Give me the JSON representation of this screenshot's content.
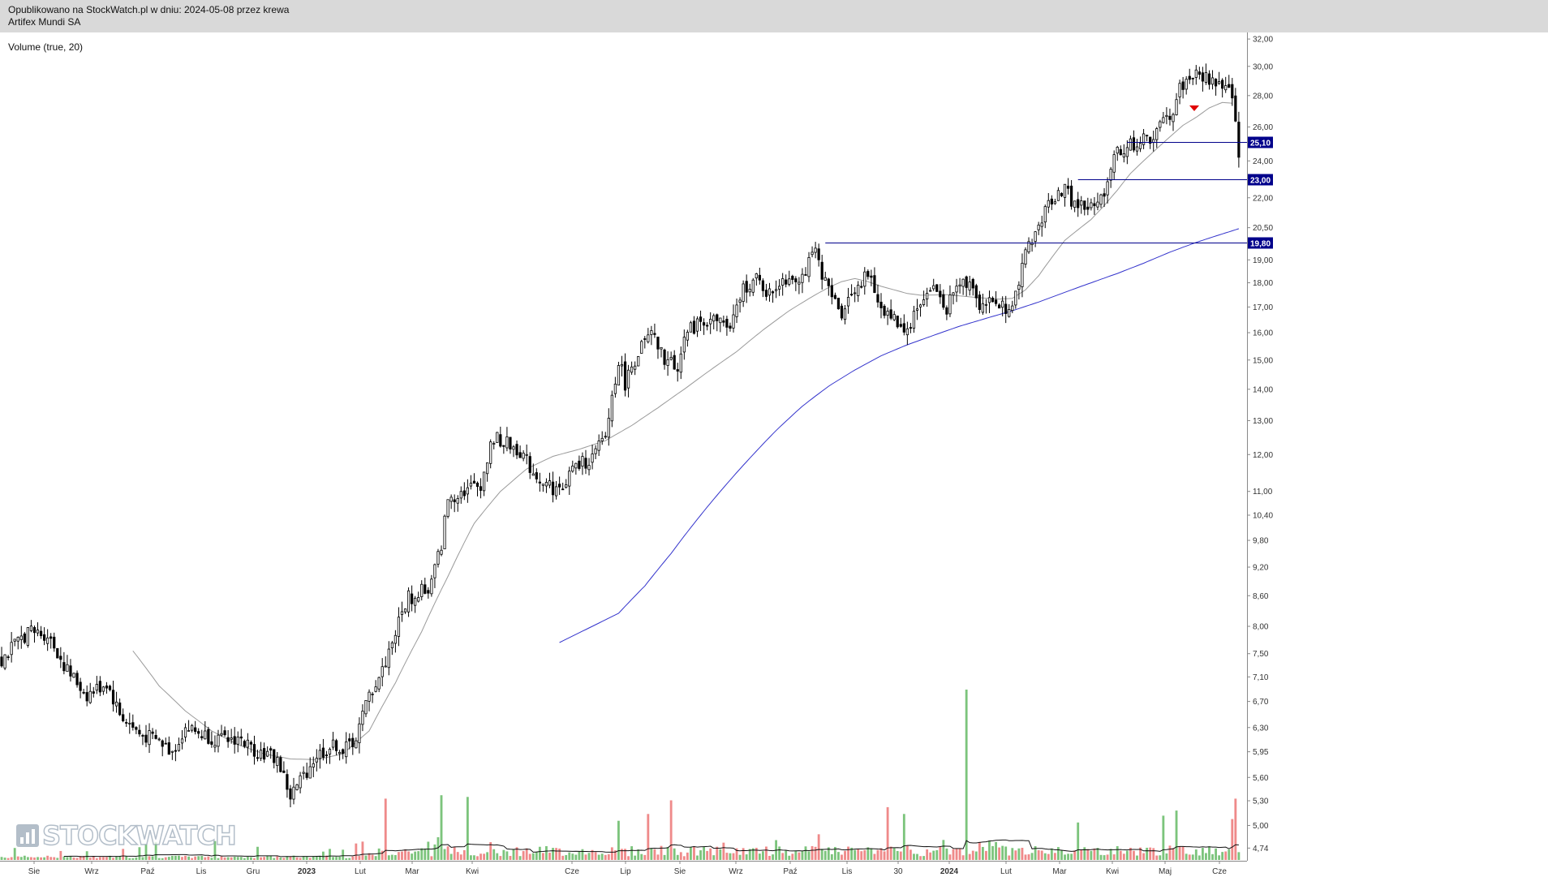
{
  "header": {
    "published": "Opublikowano na StockWatch.pl w dniu: 2024-05-08 przez krewa",
    "instrument": "Artifex Mundi SA"
  },
  "indicator_label": "Volume (true, 20)",
  "logo_text": "STOCKWATCH",
  "colors": {
    "candle": "#000000",
    "sma_short": "#9a9a9a",
    "sma_long": "#3333cc",
    "level_line": "#00008b",
    "volume_up": "#7cc47c",
    "volume_down": "#ef8a8a",
    "marker": "#ff9a9a",
    "arrow": "#e00000"
  },
  "chart_data": {
    "type": "candlestick",
    "price_axis": {
      "scale": "log",
      "ticks": [
        "32,00",
        "30,00",
        "28,00",
        "26,00",
        "24,00",
        "22,00",
        "20,50",
        "19,00",
        "18,00",
        "17,00",
        "16,00",
        "15,00",
        "14,00",
        "13,00",
        "12,00",
        "11,00",
        "10,40",
        "9,80",
        "9,20",
        "8,60",
        "8,00",
        "7,50",
        "7,10",
        "6,70",
        "6,30",
        "5,95",
        "5,60",
        "5,30",
        "5,00",
        "4,74"
      ],
      "range": [
        4.6,
        32.5
      ]
    },
    "x_axis": {
      "labels": [
        "Sie",
        "Wrz",
        "Paź",
        "Lis",
        "Gru",
        "2023",
        "Lut",
        "Mar",
        "Kwi",
        "Cze",
        "Lip",
        "Sie",
        "Wrz",
        "Paź",
        "Lis",
        "30",
        "2024",
        "Lut",
        "Mar",
        "Kwi",
        "Maj",
        "Cze"
      ],
      "bold": [
        "2023",
        "2024"
      ]
    },
    "levels": [
      {
        "value": 25.1,
        "label": "25,10"
      },
      {
        "value": 23.0,
        "label": "23,00"
      },
      {
        "value": 19.8,
        "label": "19,80"
      }
    ],
    "close_path": [
      [
        0,
        7.4
      ],
      [
        8,
        7.9
      ],
      [
        14,
        7.85
      ],
      [
        20,
        7.2
      ],
      [
        26,
        6.8
      ],
      [
        32,
        7.0
      ],
      [
        36,
        6.5
      ],
      [
        42,
        6.2
      ],
      [
        48,
        6.1
      ],
      [
        52,
        5.95
      ],
      [
        56,
        6.3
      ],
      [
        64,
        6.15
      ],
      [
        68,
        6.1
      ],
      [
        72,
        6.15
      ],
      [
        76,
        6.0
      ],
      [
        84,
        5.85
      ],
      [
        88,
        5.35
      ],
      [
        96,
        5.9
      ],
      [
        102,
        6.05
      ],
      [
        104,
        5.95
      ],
      [
        108,
        6.15
      ],
      [
        112,
        6.8
      ],
      [
        116,
        7.2
      ],
      [
        120,
        7.9
      ],
      [
        124,
        8.6
      ],
      [
        126,
        8.5
      ],
      [
        128,
        8.8
      ],
      [
        130,
        8.6
      ],
      [
        134,
        9.7
      ],
      [
        136,
        10.8
      ],
      [
        140,
        11.0
      ],
      [
        146,
        11.2
      ],
      [
        150,
        12.5
      ],
      [
        154,
        12.3
      ],
      [
        158,
        12.1
      ],
      [
        162,
        11.5
      ],
      [
        166,
        11.2
      ],
      [
        170,
        11.0
      ],
      [
        174,
        11.6
      ],
      [
        180,
        11.9
      ],
      [
        184,
        12.5
      ],
      [
        188,
        15.0
      ],
      [
        190,
        14.2
      ],
      [
        194,
        15.3
      ],
      [
        198,
        15.9
      ],
      [
        202,
        15.0
      ],
      [
        206,
        14.8
      ],
      [
        208,
        15.8
      ],
      [
        212,
        16.4
      ],
      [
        216,
        16.5
      ],
      [
        220,
        16.4
      ],
      [
        222,
        16.0
      ],
      [
        226,
        17.8
      ],
      [
        230,
        18.1
      ],
      [
        234,
        17.5
      ],
      [
        238,
        18.2
      ],
      [
        244,
        18.3
      ],
      [
        248,
        19.3
      ],
      [
        252,
        17.6
      ],
      [
        256,
        16.8
      ],
      [
        260,
        17.8
      ],
      [
        264,
        18.3
      ],
      [
        268,
        17.0
      ],
      [
        272,
        16.5
      ],
      [
        276,
        16.1
      ],
      [
        280,
        17.2
      ],
      [
        284,
        17.8
      ],
      [
        288,
        17.0
      ],
      [
        292,
        18.0
      ],
      [
        296,
        18.0
      ],
      [
        298,
        17.1
      ],
      [
        302,
        17.2
      ],
      [
        306,
        17.0
      ],
      [
        310,
        17.6
      ],
      [
        312,
        19.5
      ],
      [
        316,
        20.5
      ],
      [
        320,
        22.0
      ],
      [
        324,
        22.5
      ],
      [
        326,
        21.8
      ],
      [
        330,
        21.5
      ],
      [
        334,
        21.5
      ],
      [
        337,
        22.9
      ],
      [
        339,
        24.5
      ],
      [
        343,
        24.8
      ],
      [
        347,
        25.1
      ],
      [
        351,
        25.4
      ],
      [
        353,
        26.0
      ],
      [
        357,
        27.0
      ],
      [
        359,
        28.5
      ],
      [
        363,
        29.4
      ],
      [
        367,
        29.2
      ],
      [
        371,
        28.8
      ],
      [
        374,
        28.3
      ],
      [
        375,
        27.5
      ],
      [
        376,
        26.0
      ],
      [
        377,
        24.5
      ]
    ],
    "sma_short": [
      [
        40,
        7.55
      ],
      [
        48,
        6.95
      ],
      [
        56,
        6.55
      ],
      [
        64,
        6.25
      ],
      [
        72,
        6.05
      ],
      [
        80,
        5.92
      ],
      [
        88,
        5.85
      ],
      [
        96,
        5.84
      ],
      [
        104,
        5.92
      ],
      [
        112,
        6.25
      ],
      [
        120,
        7.0
      ],
      [
        128,
        7.9
      ],
      [
        136,
        9.0
      ],
      [
        144,
        10.2
      ],
      [
        152,
        11.0
      ],
      [
        160,
        11.6
      ],
      [
        168,
        11.95
      ],
      [
        176,
        12.15
      ],
      [
        184,
        12.4
      ],
      [
        192,
        12.85
      ],
      [
        200,
        13.4
      ],
      [
        208,
        14.0
      ],
      [
        216,
        14.65
      ],
      [
        224,
        15.3
      ],
      [
        232,
        16.1
      ],
      [
        240,
        16.85
      ],
      [
        248,
        17.5
      ],
      [
        252,
        17.8
      ],
      [
        256,
        18.05
      ],
      [
        260,
        18.18
      ],
      [
        264,
        18.05
      ],
      [
        268,
        17.85
      ],
      [
        272,
        17.7
      ],
      [
        276,
        17.55
      ],
      [
        280,
        17.48
      ],
      [
        288,
        17.5
      ],
      [
        296,
        17.4
      ],
      [
        304,
        17.32
      ],
      [
        308,
        17.35
      ],
      [
        312,
        17.7
      ],
      [
        316,
        18.3
      ],
      [
        320,
        19.1
      ],
      [
        324,
        19.9
      ],
      [
        328,
        20.4
      ],
      [
        332,
        20.9
      ],
      [
        336,
        21.6
      ],
      [
        340,
        22.4
      ],
      [
        344,
        23.3
      ],
      [
        348,
        24.0
      ],
      [
        352,
        24.7
      ],
      [
        356,
        25.4
      ],
      [
        360,
        26.1
      ],
      [
        364,
        26.6
      ],
      [
        368,
        27.2
      ],
      [
        372,
        27.55
      ],
      [
        375,
        27.5
      ]
    ],
    "sma_long": [
      [
        170,
        7.7
      ],
      [
        180,
        8.0
      ],
      [
        188,
        8.25
      ],
      [
        196,
        8.8
      ],
      [
        204,
        9.5
      ],
      [
        212,
        10.3
      ],
      [
        220,
        11.1
      ],
      [
        228,
        11.9
      ],
      [
        236,
        12.7
      ],
      [
        244,
        13.45
      ],
      [
        252,
        14.1
      ],
      [
        260,
        14.65
      ],
      [
        268,
        15.15
      ],
      [
        276,
        15.55
      ],
      [
        284,
        15.9
      ],
      [
        292,
        16.25
      ],
      [
        300,
        16.55
      ],
      [
        308,
        16.85
      ],
      [
        316,
        17.2
      ],
      [
        324,
        17.6
      ],
      [
        332,
        18.0
      ],
      [
        340,
        18.4
      ],
      [
        348,
        18.85
      ],
      [
        356,
        19.35
      ],
      [
        364,
        19.8
      ],
      [
        372,
        20.2
      ],
      [
        377,
        20.45
      ]
    ],
    "volume_spikes": [
      {
        "bar": 117,
        "value": 36,
        "dir": "down"
      },
      {
        "bar": 134,
        "value": 38,
        "dir": "up"
      },
      {
        "bar": 142,
        "value": 37,
        "dir": "up"
      },
      {
        "bar": 188,
        "value": 23,
        "dir": "up"
      },
      {
        "bar": 197,
        "value": 27,
        "dir": "down"
      },
      {
        "bar": 204,
        "value": 35,
        "dir": "down"
      },
      {
        "bar": 270,
        "value": 31,
        "dir": "down"
      },
      {
        "bar": 275,
        "value": 27,
        "dir": "up"
      },
      {
        "bar": 294,
        "value": 100,
        "dir": "up"
      },
      {
        "bar": 328,
        "value": 22,
        "dir": "up"
      },
      {
        "bar": 354,
        "value": 26,
        "dir": "up"
      },
      {
        "bar": 358,
        "value": 29,
        "dir": "up"
      },
      {
        "bar": 375,
        "value": 24,
        "dir": "down"
      },
      {
        "bar": 376,
        "value": 36,
        "dir": "down"
      }
    ]
  }
}
